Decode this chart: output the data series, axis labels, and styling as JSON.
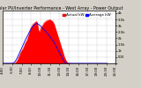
{
  "title": "Solar PV/Inverter Performance - West Array - Power Output",
  "legend_actual": "Actual kW",
  "legend_average": "Average kW",
  "legend_actual_color": "#ff0000",
  "legend_average_color": "#0000ff",
  "bg_color": "#d4d0c8",
  "plot_bg_color": "#ffffff",
  "grid_color": "#aaaaaa",
  "fill_color": "#ff0000",
  "avg_line_color": "#0000ff",
  "title_color": "#000000",
  "title_fontsize": 3.5,
  "tick_fontsize": 2.8,
  "legend_fontsize": 3.0,
  "x_ticks": [
    0,
    24,
    48,
    72,
    96,
    120,
    144,
    168,
    192,
    216,
    240,
    264,
    288
  ],
  "x_tick_labels": [
    "4:00",
    "5:30",
    "7:00",
    "8:30",
    "10:00",
    "11:30",
    "13:00",
    "14:30",
    "16:00",
    "17:30",
    "19:00",
    "20:30",
    "22:00"
  ],
  "y_ticks": [
    0,
    500,
    1000,
    1500,
    2000,
    2500,
    3000,
    3500,
    4000
  ],
  "y_tick_labels": [
    "",
    "500",
    "1k",
    "1.5k",
    "2k",
    "2.5k",
    "3k",
    "3.5k",
    "4k"
  ],
  "ylim": [
    0,
    4200
  ],
  "xlim": [
    0,
    288
  ],
  "actual_power": [
    0,
    0,
    0,
    0,
    0,
    0,
    0,
    0,
    0,
    0,
    0,
    0,
    0,
    0,
    0,
    0,
    0,
    0,
    0,
    0,
    0,
    0,
    0,
    0,
    5,
    10,
    15,
    20,
    30,
    40,
    50,
    70,
    100,
    130,
    160,
    200,
    240,
    300,
    370,
    450,
    540,
    600,
    680,
    750,
    820,
    900,
    950,
    1000,
    1050,
    1100,
    1150,
    1200,
    1280,
    1350,
    1420,
    1500,
    1580,
    1650,
    1700,
    1750,
    1800,
    1880,
    1950,
    2050,
    2150,
    2250,
    2350,
    2450,
    2550,
    2650,
    2750,
    2820,
    2900,
    2950,
    3000,
    3050,
    3100,
    3150,
    3180,
    3200,
    3220,
    3250,
    3280,
    3300,
    3320,
    3340,
    3350,
    3300,
    3250,
    3100,
    2900,
    2700,
    2600,
    2500,
    2600,
    2700,
    2800,
    2850,
    2900,
    2950,
    3000,
    3050,
    3100,
    3150,
    3200,
    3250,
    3280,
    3300,
    3320,
    3350,
    3380,
    3400,
    3420,
    3430,
    3440,
    3450,
    3460,
    3470,
    3480,
    3490,
    3500,
    3480,
    3460,
    3440,
    3420,
    3400,
    3380,
    3360,
    3300,
    3250,
    3200,
    3150,
    3050,
    2950,
    2850,
    2750,
    2650,
    2550,
    2450,
    2350,
    2250,
    2150,
    2050,
    1950,
    1850,
    1750,
    1650,
    1550,
    1450,
    1350,
    1250,
    1150,
    1050,
    950,
    850,
    750,
    650,
    550,
    450,
    380,
    320,
    260,
    200,
    150,
    110,
    80,
    60,
    40,
    30,
    20,
    15,
    10,
    5,
    3,
    2,
    1,
    0,
    0,
    0,
    0,
    0,
    0,
    0,
    0,
    0,
    0,
    0,
    0,
    0,
    0,
    0,
    0,
    0,
    0,
    0,
    0,
    0,
    0,
    0,
    0,
    0,
    0,
    0,
    0,
    0,
    0,
    0,
    0,
    0,
    0,
    0,
    0,
    0,
    0,
    0,
    0,
    0,
    0,
    0,
    0,
    0,
    0,
    0,
    0,
    0,
    0,
    0,
    0,
    0,
    0,
    0,
    0,
    0,
    0,
    0,
    0,
    0,
    0,
    0,
    0,
    0,
    0,
    0,
    0,
    0,
    0,
    0,
    0,
    0,
    0,
    0,
    0,
    0,
    0,
    0,
    0,
    0,
    0,
    0,
    0,
    0,
    0,
    0,
    0,
    0,
    0,
    0,
    0
  ],
  "avg_power": [
    0,
    0,
    0,
    0,
    0,
    0,
    0,
    0,
    0,
    0,
    0,
    0,
    0,
    0,
    0,
    0,
    0,
    0,
    0,
    0,
    0,
    0,
    0,
    0,
    5,
    10,
    20,
    35,
    55,
    80,
    110,
    145,
    185,
    230,
    280,
    335,
    390,
    450,
    515,
    580,
    650,
    720,
    790,
    860,
    930,
    1000,
    1070,
    1140,
    1210,
    1280,
    1350,
    1420,
    1490,
    1560,
    1630,
    1700,
    1770,
    1840,
    1900,
    1960,
    2020,
    2080,
    2140,
    2200,
    2260,
    2320,
    2380,
    2440,
    2500,
    2560,
    2620,
    2680,
    2740,
    2790,
    2840,
    2890,
    2940,
    2980,
    3010,
    3040,
    3070,
    3090,
    3110,
    3130,
    3150,
    3160,
    3170,
    3170,
    3160,
    3150,
    3130,
    3110,
    3090,
    3060,
    3030,
    3000,
    2970,
    2940,
    2910,
    2880,
    2850,
    2820,
    2790,
    2760,
    2730,
    2700,
    2670,
    2640,
    2610,
    2580,
    2540,
    2500,
    2460,
    2420,
    2380,
    2340,
    2300,
    2260,
    2220,
    2180,
    2140,
    2100,
    2060,
    2020,
    1980,
    1940,
    1900,
    1860,
    1810,
    1760,
    1710,
    1660,
    1600,
    1540,
    1480,
    1420,
    1360,
    1300,
    1240,
    1180,
    1120,
    1060,
    1000,
    940,
    880,
    820,
    760,
    700,
    640,
    580,
    520,
    460,
    400,
    340,
    280,
    230,
    180,
    140,
    105,
    75,
    50,
    30,
    18,
    10,
    5,
    2,
    1,
    0,
    0,
    0,
    0,
    0,
    0,
    0,
    0,
    0,
    0,
    0,
    0,
    0,
    0,
    0,
    0,
    0,
    0,
    0,
    0,
    0,
    0,
    0,
    0,
    0,
    0,
    0,
    0,
    0,
    0,
    0,
    0,
    0,
    0,
    0,
    0,
    0,
    0,
    0,
    0,
    0,
    0,
    0,
    0,
    0,
    0,
    0,
    0,
    0,
    0,
    0,
    0,
    0,
    0,
    0,
    0,
    0,
    0,
    0,
    0,
    0,
    0,
    0,
    0,
    0,
    0,
    0,
    0,
    0,
    0,
    0,
    0,
    0,
    0,
    0,
    0,
    0,
    0,
    0,
    0,
    0,
    0,
    0,
    0,
    0,
    0,
    0,
    0,
    0,
    0,
    0,
    0,
    0,
    0,
    0,
    0,
    0,
    0,
    0,
    0,
    0
  ]
}
